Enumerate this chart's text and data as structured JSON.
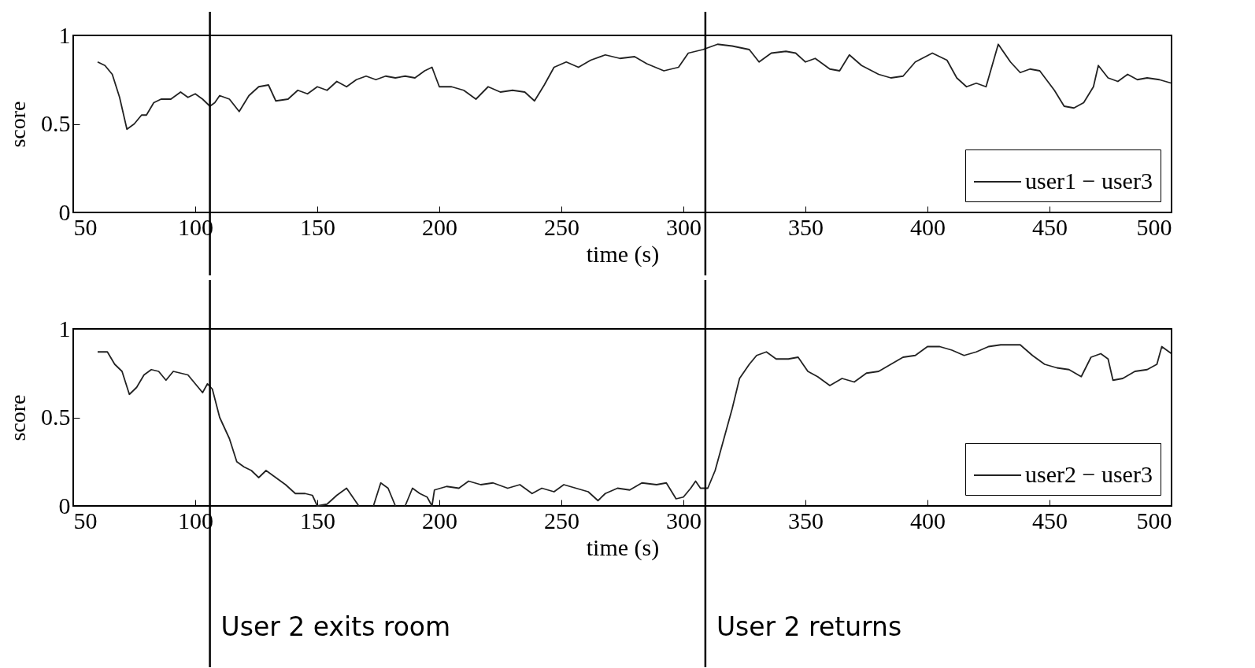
{
  "chart_data": [
    {
      "type": "line",
      "xlabel": "time (s)",
      "ylabel": "score",
      "xlim": [
        50,
        500
      ],
      "ylim": [
        0,
        1
      ],
      "xticks": [
        50,
        100,
        150,
        200,
        250,
        300,
        350,
        400,
        450,
        500
      ],
      "yticks": [
        0,
        0.5,
        1
      ],
      "grid": false,
      "legend": "bottom right",
      "line_style": "solid",
      "marker": "none",
      "series": [
        {
          "name": "user1 − user3",
          "color": "#222222",
          "x": [
            60,
            63,
            66,
            69,
            72,
            75,
            78,
            80,
            83,
            86,
            90,
            94,
            97,
            100,
            103,
            106,
            108,
            110,
            114,
            118,
            122,
            126,
            130,
            133,
            138,
            142,
            146,
            150,
            154,
            158,
            162,
            166,
            170,
            174,
            178,
            182,
            186,
            190,
            194,
            197,
            200,
            205,
            210,
            215,
            220,
            225,
            230,
            235,
            239,
            243,
            247,
            252,
            257,
            262,
            268,
            274,
            280,
            285,
            292,
            298,
            302,
            308,
            314,
            320,
            327,
            331,
            336,
            342,
            346,
            350,
            354,
            360,
            364,
            368,
            373,
            380,
            385,
            390,
            395,
            402,
            408,
            412,
            416,
            420,
            424,
            429,
            434,
            438,
            442,
            446,
            452,
            456,
            460,
            464,
            468,
            470,
            474,
            478,
            482,
            486,
            490,
            495,
            500
          ],
          "values": [
            0.85,
            0.83,
            0.78,
            0.65,
            0.47,
            0.5,
            0.55,
            0.55,
            0.62,
            0.64,
            0.64,
            0.68,
            0.65,
            0.67,
            0.64,
            0.6,
            0.62,
            0.66,
            0.64,
            0.57,
            0.66,
            0.71,
            0.72,
            0.63,
            0.64,
            0.69,
            0.67,
            0.71,
            0.69,
            0.74,
            0.71,
            0.75,
            0.77,
            0.75,
            0.77,
            0.76,
            0.77,
            0.76,
            0.8,
            0.82,
            0.71,
            0.71,
            0.69,
            0.64,
            0.71,
            0.68,
            0.69,
            0.68,
            0.63,
            0.72,
            0.82,
            0.85,
            0.82,
            0.86,
            0.89,
            0.87,
            0.88,
            0.84,
            0.8,
            0.82,
            0.9,
            0.92,
            0.95,
            0.94,
            0.92,
            0.85,
            0.9,
            0.91,
            0.9,
            0.85,
            0.87,
            0.81,
            0.8,
            0.89,
            0.83,
            0.78,
            0.76,
            0.77,
            0.85,
            0.9,
            0.86,
            0.76,
            0.71,
            0.73,
            0.71,
            0.95,
            0.85,
            0.79,
            0.81,
            0.8,
            0.69,
            0.6,
            0.59,
            0.62,
            0.71,
            0.83,
            0.76,
            0.74,
            0.78,
            0.75,
            0.76,
            0.75,
            0.73
          ]
        }
      ],
      "ref_lines": [
        {
          "axis": "x",
          "value": 106,
          "label": null,
          "color": "#000000"
        },
        {
          "axis": "x",
          "value": 309,
          "label": null,
          "color": "#000000"
        }
      ]
    },
    {
      "type": "line",
      "xlabel": "time (s)",
      "ylabel": "score",
      "xlim": [
        50,
        500
      ],
      "ylim": [
        0,
        1
      ],
      "xticks": [
        50,
        100,
        150,
        200,
        250,
        300,
        350,
        400,
        450,
        500
      ],
      "yticks": [
        0,
        0.5,
        1
      ],
      "grid": false,
      "legend": "bottom right",
      "line_style": "solid",
      "marker": "none",
      "series": [
        {
          "name": "user2 − user3",
          "color": "#222222",
          "x": [
            60,
            64,
            67,
            70,
            73,
            76,
            79,
            82,
            85,
            88,
            91,
            94,
            97,
            100,
            103,
            105,
            107,
            110,
            114,
            117,
            120,
            123,
            126,
            129,
            133,
            137,
            141,
            145,
            148,
            150,
            154,
            158,
            162,
            165,
            167,
            168,
            173,
            176,
            179,
            182,
            184,
            186,
            189,
            192,
            195,
            197,
            198,
            203,
            208,
            212,
            217,
            222,
            228,
            233,
            238,
            242,
            247,
            251,
            256,
            261,
            265,
            268,
            273,
            278,
            283,
            289,
            293,
            297,
            300,
            303,
            305,
            307,
            310,
            313,
            317,
            320,
            323,
            327,
            330,
            334,
            338,
            343,
            347,
            351,
            355,
            360,
            365,
            370,
            375,
            380,
            385,
            390,
            395,
            400,
            405,
            410,
            415,
            420,
            425,
            430,
            438,
            443,
            448,
            453,
            458,
            463,
            467,
            471,
            474,
            476,
            480,
            485,
            490,
            494,
            496,
            500
          ],
          "values": [
            0.87,
            0.87,
            0.8,
            0.76,
            0.63,
            0.67,
            0.74,
            0.77,
            0.76,
            0.71,
            0.76,
            0.75,
            0.74,
            0.69,
            0.64,
            0.69,
            0.66,
            0.5,
            0.38,
            0.25,
            0.22,
            0.2,
            0.16,
            0.2,
            0.16,
            0.12,
            0.07,
            0.07,
            0.06,
            0.0,
            0.01,
            0.06,
            0.1,
            0.04,
            0.0,
            null,
            0.0,
            0.13,
            0.1,
            0.0,
            null,
            0.0,
            0.1,
            0.07,
            0.05,
            0.0,
            0.09,
            0.11,
            0.1,
            0.14,
            0.12,
            0.13,
            0.1,
            0.12,
            0.07,
            0.1,
            0.08,
            0.12,
            0.1,
            0.08,
            0.03,
            0.07,
            0.1,
            0.09,
            0.13,
            0.12,
            0.13,
            0.04,
            0.05,
            0.1,
            0.14,
            0.1,
            0.1,
            0.2,
            0.4,
            0.55,
            0.72,
            0.8,
            0.85,
            0.87,
            0.83,
            0.83,
            0.84,
            0.76,
            0.73,
            0.68,
            0.72,
            0.7,
            0.75,
            0.76,
            0.8,
            0.84,
            0.85,
            0.9,
            0.9,
            0.88,
            0.85,
            0.87,
            0.9,
            0.91,
            0.91,
            0.85,
            0.8,
            0.78,
            0.77,
            0.73,
            0.84,
            0.86,
            0.83,
            0.71,
            0.72,
            0.76,
            0.77,
            0.8,
            0.9,
            0.86
          ]
        }
      ],
      "ref_lines": [
        {
          "axis": "x",
          "value": 106,
          "label": "User 2 exits room",
          "color": "#000000"
        },
        {
          "axis": "x",
          "value": 309,
          "label": "User 2 returns",
          "color": "#000000"
        }
      ]
    }
  ]
}
